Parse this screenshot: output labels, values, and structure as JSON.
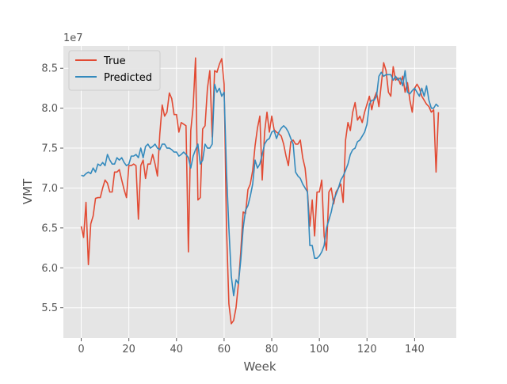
{
  "chart_data": {
    "type": "line",
    "xlabel": "Week",
    "ylabel": "VMT",
    "y_offset_label": "1e7",
    "xlim": [
      -7.5,
      157.5
    ],
    "ylim": [
      5.12,
      8.78
    ],
    "x_ticks": [
      0,
      20,
      40,
      60,
      80,
      100,
      120,
      140
    ],
    "y_ticks": [
      5.5,
      6.0,
      6.5,
      7.0,
      7.5,
      8.0,
      8.5
    ],
    "y_tick_labels": [
      "5.5",
      "6.0",
      "6.5",
      "7.0",
      "7.5",
      "8.0",
      "8.5"
    ],
    "grid": true,
    "legend_position": "top-left",
    "series": [
      {
        "name": "True",
        "color": "#E24A33",
        "values": [
          6.52,
          6.38,
          6.82,
          6.04,
          6.55,
          6.65,
          6.87,
          6.88,
          6.88,
          7.0,
          7.1,
          7.06,
          6.95,
          6.95,
          7.2,
          7.2,
          7.23,
          7.1,
          6.98,
          6.88,
          7.28,
          7.28,
          7.3,
          7.28,
          6.61,
          7.28,
          7.35,
          7.12,
          7.3,
          7.3,
          7.42,
          7.3,
          7.15,
          7.68,
          8.04,
          7.9,
          7.95,
          8.19,
          8.12,
          7.92,
          7.92,
          7.7,
          7.82,
          7.8,
          7.78,
          6.2,
          7.72,
          8.02,
          8.63,
          6.85,
          6.88,
          7.74,
          7.78,
          8.25,
          8.47,
          7.64,
          8.47,
          8.45,
          8.55,
          8.62,
          8.3,
          6.5,
          5.55,
          5.3,
          5.34,
          5.5,
          5.8,
          6.2,
          6.7,
          6.68,
          6.98,
          7.05,
          7.22,
          7.53,
          7.75,
          7.9,
          7.1,
          7.7,
          7.95,
          7.7,
          7.9,
          7.73,
          7.7,
          7.68,
          7.65,
          7.55,
          7.4,
          7.28,
          7.58,
          7.6,
          7.55,
          7.55,
          7.6,
          7.38,
          7.25,
          6.95,
          6.52,
          6.85,
          6.4,
          6.95,
          6.95,
          7.1,
          6.4,
          6.22,
          6.95,
          7.0,
          6.8,
          6.95,
          7.0,
          7.05,
          6.82,
          7.6,
          7.82,
          7.72,
          7.95,
          8.07,
          7.85,
          7.9,
          7.82,
          7.95,
          8.05,
          8.15,
          7.98,
          8.12,
          8.2,
          8.02,
          8.3,
          8.57,
          8.47,
          8.2,
          8.15,
          8.52,
          8.35,
          8.38,
          8.3,
          8.4,
          8.2,
          8.32,
          8.1,
          7.95,
          8.25,
          8.3,
          8.25,
          8.15,
          8.1,
          8.05,
          8.02,
          7.95,
          7.98,
          7.2,
          7.95
        ]
      },
      {
        "name": "Predicted",
        "color": "#348ABD",
        "values": [
          7.16,
          7.15,
          7.18,
          7.2,
          7.18,
          7.25,
          7.2,
          7.3,
          7.28,
          7.32,
          7.28,
          7.42,
          7.35,
          7.3,
          7.3,
          7.38,
          7.35,
          7.38,
          7.32,
          7.28,
          7.3,
          7.4,
          7.4,
          7.42,
          7.38,
          7.5,
          7.38,
          7.52,
          7.55,
          7.5,
          7.52,
          7.55,
          7.5,
          7.48,
          7.55,
          7.55,
          7.5,
          7.5,
          7.48,
          7.45,
          7.45,
          7.4,
          7.42,
          7.45,
          7.42,
          7.38,
          7.25,
          7.4,
          7.48,
          7.55,
          7.3,
          7.35,
          7.55,
          7.5,
          7.5,
          7.55,
          8.3,
          8.2,
          8.25,
          8.15,
          8.2,
          7.2,
          6.5,
          5.9,
          5.65,
          5.85,
          5.8,
          6.1,
          6.5,
          6.72,
          6.78,
          6.9,
          7.05,
          7.35,
          7.25,
          7.3,
          7.42,
          7.55,
          7.6,
          7.62,
          7.7,
          7.72,
          7.62,
          7.7,
          7.75,
          7.78,
          7.75,
          7.7,
          7.62,
          7.55,
          7.2,
          7.15,
          7.12,
          7.05,
          7.0,
          6.95,
          6.28,
          6.28,
          6.12,
          6.12,
          6.15,
          6.2,
          6.28,
          6.5,
          6.6,
          6.7,
          6.85,
          6.92,
          7.0,
          7.1,
          7.15,
          7.22,
          7.3,
          7.42,
          7.48,
          7.5,
          7.58,
          7.6,
          7.65,
          7.7,
          7.8,
          8.05,
          8.1,
          8.1,
          8.15,
          8.4,
          8.45,
          8.4,
          8.42,
          8.42,
          8.42,
          8.35,
          8.4,
          8.35,
          8.38,
          8.28,
          8.47,
          8.2,
          8.18,
          8.22,
          8.25,
          8.2,
          8.15,
          8.25,
          8.15,
          8.28,
          8.1,
          8.0,
          8.0,
          8.05,
          8.02
        ]
      }
    ]
  }
}
